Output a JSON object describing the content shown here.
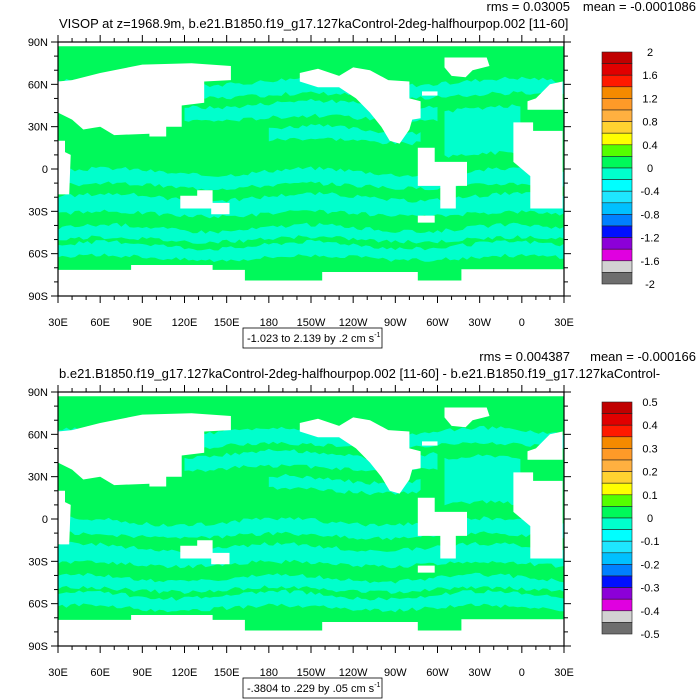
{
  "colors": {
    "ocean_near_zero": "#00f95a",
    "ocean_slightly_negative": "#00ffcc",
    "land": "#ffffff",
    "frame": "#000000"
  },
  "colorbar_colors": [
    "#c00000",
    "#e00000",
    "#ff1a00",
    "#f58a00",
    "#ff9a28",
    "#ffb040",
    "#ffd230",
    "#ffff00",
    "#55ff00",
    "#00f95a",
    "#00ffcc",
    "#00ffff",
    "#1ee6ff",
    "#00c0ff",
    "#0080ff",
    "#0010ff",
    "#8c00d8",
    "#e000e0",
    "#d2d2d2",
    "#6e6e6e"
  ],
  "lat_labels": [
    "90N",
    "60N",
    "30N",
    "0",
    "30S",
    "60S",
    "90S"
  ],
  "lon_labels": [
    "30E",
    "60E",
    "90E",
    "120E",
    "150E",
    "180",
    "150W",
    "120W",
    "90W",
    "60W",
    "30W",
    "0",
    "30E"
  ],
  "chart_data": [
    {
      "type": "heatmap",
      "title": "VISOP at z=1968.9m, b.e21.B1850.f19_g17.127kaControl-2deg-halfhourpop.002 [11-60]",
      "stats": {
        "mean": "mean = -0.0001086",
        "rms": "rms = 0.03005"
      },
      "contour_info": {
        "text": "-1.023 to 2.139 by .2 cm s",
        "unit_exp": "-1"
      },
      "colorbar_labels": [
        "2",
        "1.6",
        "1.2",
        "0.8",
        "0.4",
        "0",
        "-0.4",
        "-0.8",
        "-1.2",
        "-1.6",
        "-2"
      ],
      "colorbar_range": [
        -2,
        2
      ],
      "xlim": [
        "30E",
        "30E"
      ],
      "ylim": [
        "90S",
        "90N"
      ],
      "dominant_values": [
        "0 to 0.2",
        "-0.2 to 0"
      ]
    },
    {
      "type": "heatmap",
      "title": "b.e21.B1850.f19_g17.127kaControl-2deg-halfhourpop.002 [11-60] - b.e21.B1850.f19_g17.127kaControl-",
      "stats": {
        "mean": "mean = -0.000166",
        "rms": "rms = 0.004387"
      },
      "contour_info": {
        "text": "-.3804 to .229 by .05 cm s",
        "unit_exp": "-1"
      },
      "colorbar_labels": [
        "0.5",
        "0.4",
        "0.3",
        "0.2",
        "0.1",
        "0",
        "-0.1",
        "-0.2",
        "-0.3",
        "-0.4",
        "-0.5"
      ],
      "colorbar_range": [
        -0.5,
        0.5
      ],
      "xlim": [
        "30E",
        "30E"
      ],
      "ylim": [
        "90S",
        "90N"
      ],
      "dominant_values": [
        "0 to 0.05",
        "-0.05 to 0"
      ]
    }
  ]
}
